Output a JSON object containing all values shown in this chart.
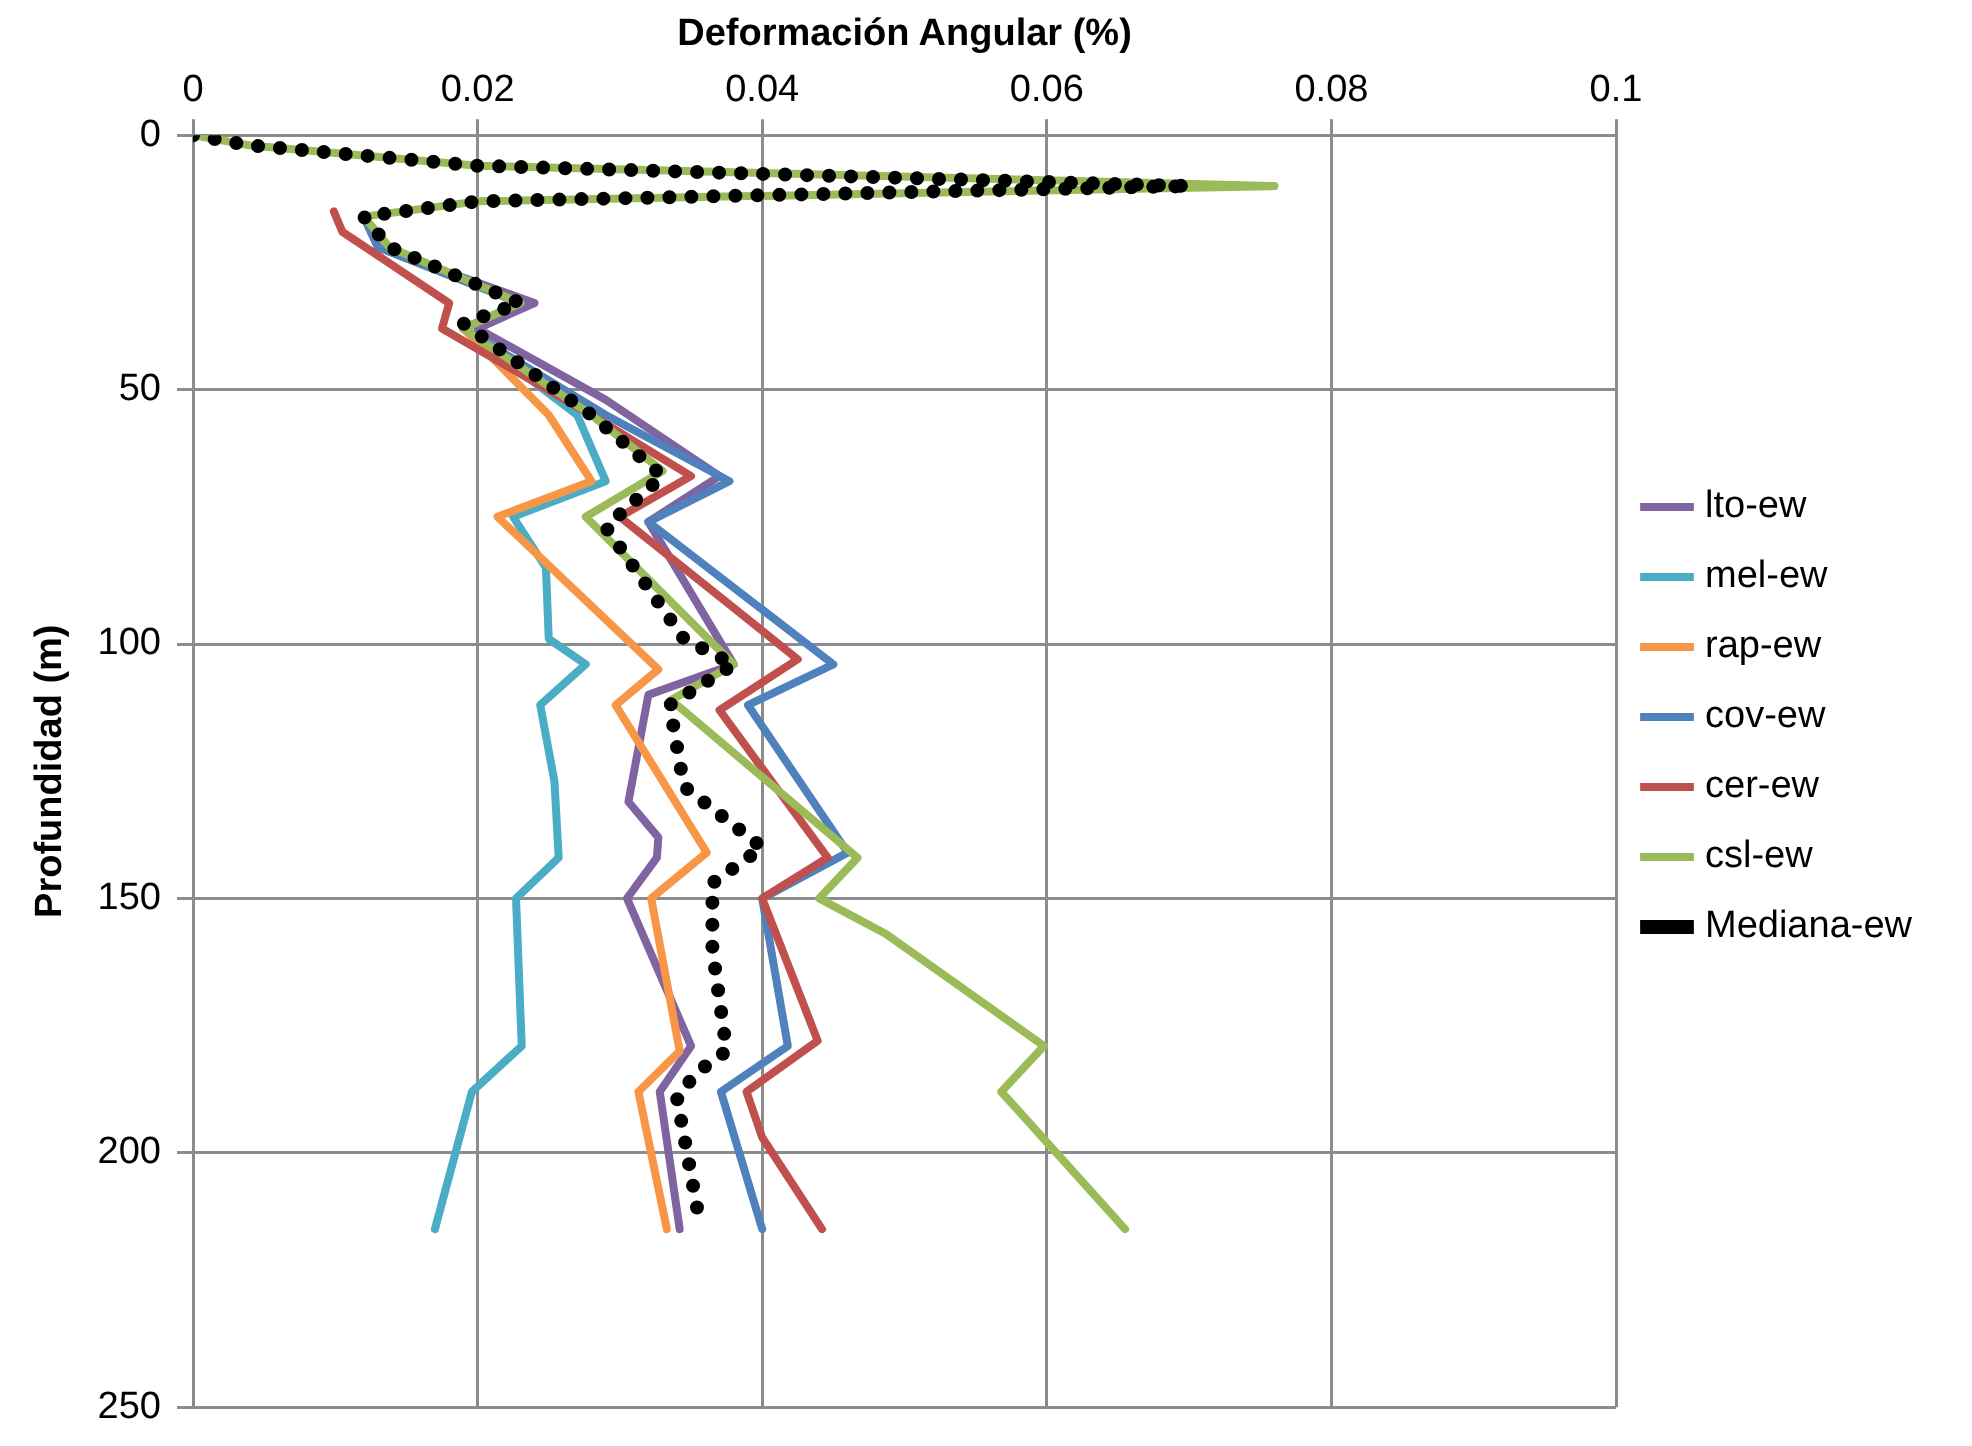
{
  "chart_data": {
    "type": "line",
    "xlabel": "Deformación Angular (%)",
    "ylabel": "Profundidad (m)",
    "xlim": [
      0,
      0.1
    ],
    "xticks": [
      0,
      0.02,
      0.04,
      0.06,
      0.08,
      0.1
    ],
    "ylim": [
      250,
      0
    ],
    "yticks": [
      0,
      50,
      100,
      150,
      200,
      250
    ],
    "grid": true,
    "legend": "right",
    "marker": "none",
    "line_style": "solid",
    "series": [
      {
        "name": "lto-ew",
        "color": "#8064a2",
        "x": [
          0.012,
          0.013,
          0.024,
          0.02,
          0.029,
          0.037,
          0.032,
          0.038,
          0.032,
          0.0306,
          0.0327,
          0.0326,
          0.0305,
          0.035,
          0.0328,
          0.0342
        ],
        "values": [
          16,
          22,
          33,
          38,
          52,
          67,
          76,
          104,
          110,
          131,
          138,
          142,
          150,
          179,
          188,
          215
        ]
      },
      {
        "name": "mel-ew",
        "color": "#4bacc6",
        "x": [
          0.012,
          0.013,
          0.023,
          0.019,
          0.027,
          0.029,
          0.0225,
          0.0248,
          0.025,
          0.0276,
          0.0244,
          0.0254,
          0.0257,
          0.0227,
          0.0231,
          0.0196,
          0.017
        ],
        "values": [
          16,
          22,
          33,
          38,
          55,
          68,
          75,
          85,
          99,
          104,
          112,
          127,
          142,
          150,
          179,
          188,
          215
        ]
      },
      {
        "name": "rap-ew",
        "color": "#f79646",
        "x": [
          0.012,
          0.013,
          0.023,
          0.019,
          0.025,
          0.028,
          0.0214,
          0.0327,
          0.0297,
          0.0361,
          0.0322,
          0.0342,
          0.0313,
          0.0333
        ],
        "values": [
          16,
          22,
          33,
          38,
          55,
          68,
          75,
          105,
          112,
          141,
          150,
          180,
          188,
          215
        ]
      },
      {
        "name": "cov-ew",
        "color": "#4f81bd",
        "x": [
          0.012,
          0.013,
          0.023,
          0.019,
          0.029,
          0.0377,
          0.032,
          0.045,
          0.039,
          0.046,
          0.04,
          0.0418,
          0.0371,
          0.04
        ],
        "values": [
          16,
          22,
          33,
          38,
          55,
          68,
          76,
          104,
          112,
          141,
          150,
          179,
          188,
          215
        ]
      },
      {
        "name": "cer-ew",
        "color": "#c0504d",
        "x": [
          0.0099,
          0.0105,
          0.018,
          0.0175,
          0.028,
          0.035,
          0.03,
          0.0425,
          0.037,
          0.0446,
          0.04,
          0.0439,
          0.0389,
          0.04,
          0.0442
        ],
        "values": [
          15,
          19,
          33,
          38,
          55,
          67,
          75,
          103,
          113,
          142,
          150,
          178,
          188,
          197,
          215
        ]
      },
      {
        "name": "csl-ew",
        "color": "#9bbb59",
        "x": [
          0,
          0.004,
          0.02,
          0.076,
          0.02,
          0.012,
          0.0138,
          0.023,
          0.019,
          0.028,
          0.033,
          0.0276,
          0.038,
          0.0336,
          0.0467,
          0.044,
          0.0487,
          0.0598,
          0.0568,
          0.0655
        ],
        "values": [
          0,
          2,
          6,
          10,
          13,
          16,
          22,
          33,
          38,
          55,
          66,
          75,
          104,
          111,
          142,
          150,
          157,
          179,
          188,
          215
        ]
      },
      {
        "name": "Mediana-ew",
        "color": "#000000",
        "line_style": "dotted",
        "x": [
          0,
          0.004,
          0.02,
          0.07,
          0.02,
          0.012,
          0.0138,
          0.023,
          0.019,
          0.028,
          0.033,
          0.029,
          0.0345,
          0.038,
          0.0335,
          0.0345,
          0.04,
          0.0365,
          0.0365,
          0.0375,
          0.0355,
          0.034,
          0.0355
        ],
        "values": [
          0,
          2,
          6,
          10,
          13,
          16,
          22,
          33,
          37,
          55,
          67,
          77,
          99,
          104,
          112,
          128,
          140,
          147,
          160,
          180,
          184,
          189,
          212
        ]
      }
    ]
  }
}
